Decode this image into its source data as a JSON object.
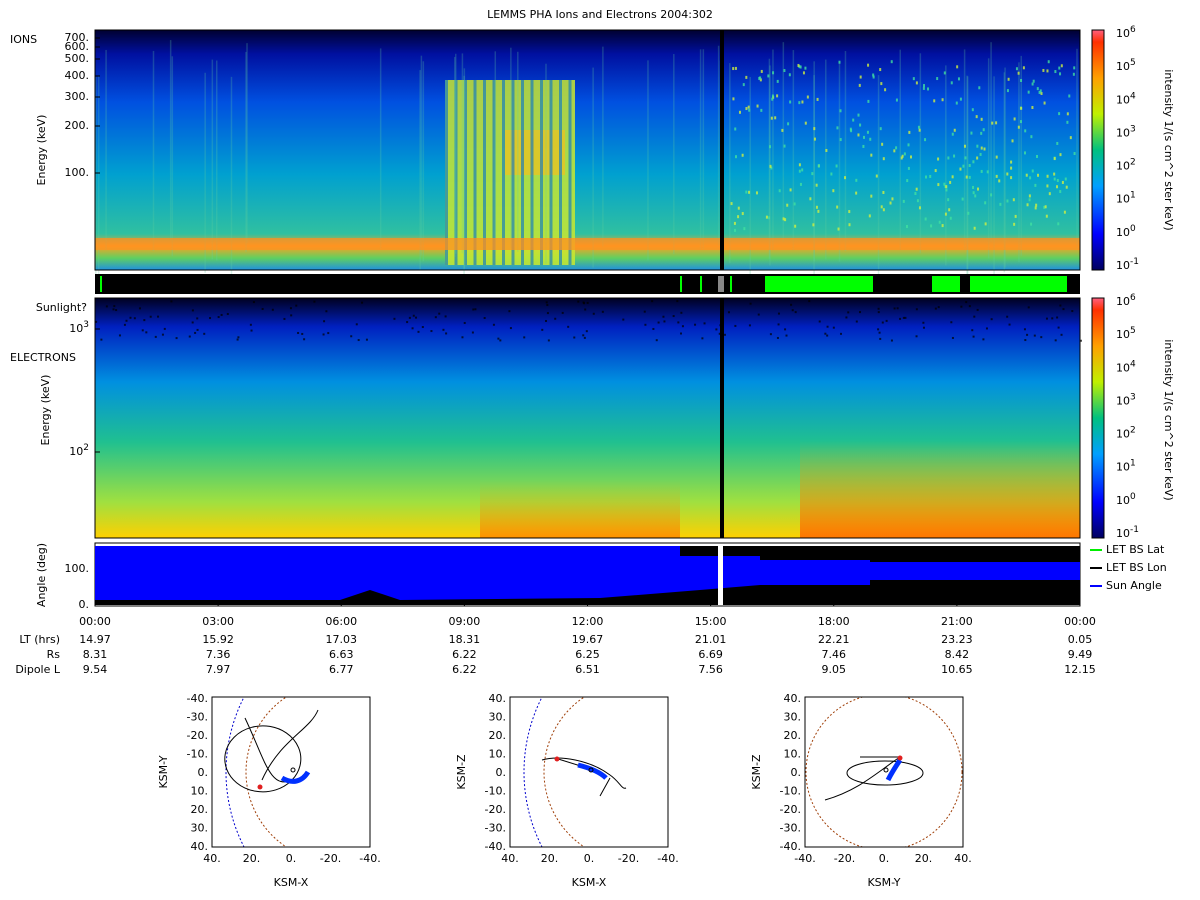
{
  "title": "LEMMS PHA Ions and Electrons  2004:302",
  "ions": {
    "label": "IONS",
    "y_axis_label": "Energy (keV)",
    "yticks": [
      "700.",
      "600.",
      "500.",
      "400.",
      "300.",
      "200.",
      "100."
    ]
  },
  "sunlight": {
    "label": "Sunlight?"
  },
  "electrons": {
    "label": "ELECTRONS",
    "y_axis_label": "Energy (keV)",
    "yticks": [
      {
        "base": "10",
        "exp": "3"
      },
      {
        "base": "10",
        "exp": "2"
      }
    ]
  },
  "colorbar": {
    "label": "intensity 1/(s cm^2 ster keV)",
    "base": "10",
    "exponents": [
      "6",
      "5",
      "4",
      "3",
      "2",
      "1",
      "0",
      "-1"
    ]
  },
  "angle": {
    "y_axis_label": "Angle (deg)",
    "yticks": [
      "100.",
      "0."
    ],
    "legend": [
      {
        "name": "LET BS Lat",
        "color": "#00ee00"
      },
      {
        "name": "LET BS Lon",
        "color": "#000000"
      },
      {
        "name": "Sun Angle",
        "color": "#0000ff"
      }
    ]
  },
  "time_axis": {
    "ticks": [
      "00:00",
      "03:00",
      "06:00",
      "09:00",
      "12:00",
      "15:00",
      "18:00",
      "21:00",
      "00:00"
    ]
  },
  "ephemeris": {
    "rows": [
      {
        "label": "LT (hrs)",
        "values": [
          "14.97",
          "15.92",
          "17.03",
          "18.31",
          "19.67",
          "21.01",
          "22.21",
          "23.23",
          "0.05"
        ]
      },
      {
        "label": "Rs",
        "values": [
          "8.31",
          "7.36",
          "6.63",
          "6.22",
          "6.25",
          "6.69",
          "7.46",
          "8.42",
          "9.49"
        ]
      },
      {
        "label": "Dipole L",
        "values": [
          "9.54",
          "7.97",
          "6.77",
          "6.22",
          "6.51",
          "7.56",
          "9.05",
          "10.65",
          "12.15"
        ]
      }
    ]
  },
  "orbits": [
    {
      "x_label": "KSM-X",
      "y_label": "KSM-Y",
      "xticks": [
        "40.",
        "20.",
        "0.",
        "-20.",
        "-40."
      ],
      "yticks": [
        "-40.",
        "-30.",
        "-20.",
        "-10.",
        "0.",
        "10.",
        "20.",
        "30.",
        "40."
      ]
    },
    {
      "x_label": "KSM-X",
      "y_label": "KSM-Z",
      "xticks": [
        "40.",
        "20.",
        "0.",
        "-20.",
        "-40."
      ],
      "yticks": [
        "40.",
        "30.",
        "20.",
        "10.",
        "0.",
        "-10.",
        "-20.",
        "-30.",
        "-40."
      ]
    },
    {
      "x_label": "KSM-Y",
      "y_label": "KSM-Z",
      "xticks": [
        "-40.",
        "-20.",
        "0.",
        "20.",
        "40."
      ],
      "yticks": [
        "40.",
        "30.",
        "20.",
        "10.",
        "0.",
        "-10.",
        "-20.",
        "-30.",
        "-40."
      ]
    }
  ]
}
